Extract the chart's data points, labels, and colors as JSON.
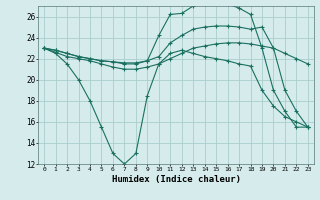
{
  "xlabel": "Humidex (Indice chaleur)",
  "bg_color": "#d6ecec",
  "grid_color": "#aacece",
  "line_color": "#1a7060",
  "x_ticks": [
    0,
    1,
    2,
    3,
    4,
    5,
    6,
    7,
    8,
    9,
    10,
    11,
    12,
    13,
    14,
    15,
    16,
    17,
    18,
    19,
    20,
    21,
    22,
    23
  ],
  "ylim": [
    12,
    27
  ],
  "yticks": [
    12,
    14,
    16,
    18,
    20,
    22,
    24,
    26
  ],
  "series": [
    [
      23.0,
      22.8,
      22.5,
      22.2,
      22.0,
      21.8,
      21.7,
      21.6,
      21.6,
      21.8,
      22.2,
      23.5,
      24.2,
      24.8,
      25.0,
      25.1,
      25.1,
      25.0,
      24.8,
      25.0,
      23.0,
      19.0,
      17.0,
      15.5
    ],
    [
      23.0,
      22.8,
      22.5,
      22.2,
      22.0,
      21.8,
      21.7,
      21.5,
      21.5,
      21.8,
      24.2,
      26.2,
      26.3,
      27.0,
      27.2,
      27.3,
      27.2,
      26.8,
      26.2,
      23.0,
      19.0,
      17.0,
      15.5,
      15.5
    ],
    [
      23.0,
      22.6,
      22.2,
      22.0,
      21.8,
      21.5,
      21.2,
      21.0,
      21.0,
      21.2,
      21.5,
      22.0,
      22.5,
      23.0,
      23.2,
      23.4,
      23.5,
      23.5,
      23.4,
      23.2,
      23.0,
      22.5,
      22.0,
      21.5
    ],
    [
      23.0,
      22.5,
      21.5,
      20.0,
      18.0,
      15.5,
      13.0,
      12.0,
      13.0,
      18.5,
      21.5,
      22.5,
      22.8,
      22.5,
      22.2,
      22.0,
      21.8,
      21.5,
      21.3,
      19.0,
      17.5,
      16.5,
      16.0,
      15.5
    ]
  ]
}
